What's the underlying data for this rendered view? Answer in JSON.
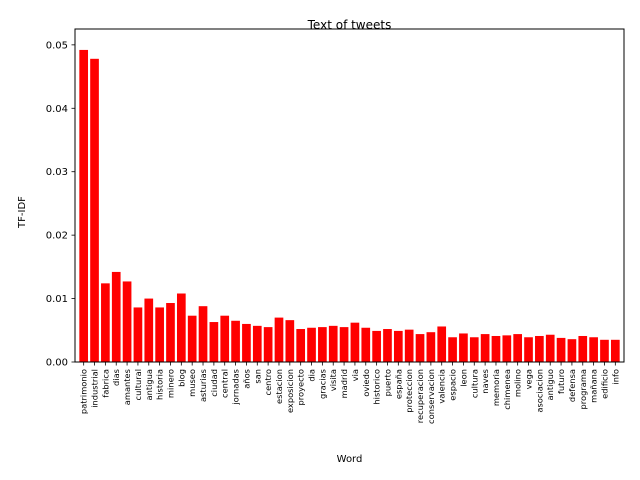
{
  "chart_data": {
    "type": "bar",
    "title": "Text of tweets",
    "xlabel": "Word",
    "ylabel": "TF-IDF",
    "ylim": [
      0,
      0.0525
    ],
    "yticks": [
      "0.00",
      "0.01",
      "0.02",
      "0.03",
      "0.04",
      "0.05"
    ],
    "bar_color": "#ff0000",
    "grid": false,
    "categories": [
      "patrimonio",
      "industrial",
      "fabrica",
      "dias",
      "amantes",
      "cultural",
      "antigua",
      "historia",
      "minero",
      "blog",
      "museo",
      "asturias",
      "ciudad",
      "central",
      "jornadas",
      "años",
      "san",
      "centro",
      "estacion",
      "exposicion",
      "proyecto",
      "dia",
      "gracias",
      "visita",
      "madrid",
      "via",
      "oviedo",
      "historico",
      "puerto",
      "españa",
      "proteccion",
      "recuperacion",
      "conservacion",
      "valencia",
      "espacio",
      "leon",
      "cultura",
      "naves",
      "memoria",
      "chimenea",
      "molino",
      "vega",
      "asociacion",
      "antiguo",
      "futuro",
      "defensa",
      "programa",
      "mañana",
      "edificio",
      "info"
    ],
    "values": [
      0.0492,
      0.0478,
      0.0124,
      0.0142,
      0.0127,
      0.0086,
      0.01,
      0.0086,
      0.0093,
      0.0108,
      0.0073,
      0.0088,
      0.0063,
      0.0073,
      0.0065,
      0.006,
      0.0057,
      0.0055,
      0.007,
      0.0066,
      0.0052,
      0.0054,
      0.0055,
      0.0057,
      0.0055,
      0.0062,
      0.0054,
      0.0049,
      0.0052,
      0.0049,
      0.0051,
      0.0044,
      0.0047,
      0.0056,
      0.0039,
      0.0045,
      0.0039,
      0.0044,
      0.0041,
      0.0042,
      0.0044,
      0.0039,
      0.0041,
      0.0043,
      0.0038,
      0.0036,
      0.0041,
      0.0039,
      0.0035,
      0.0035
    ]
  }
}
